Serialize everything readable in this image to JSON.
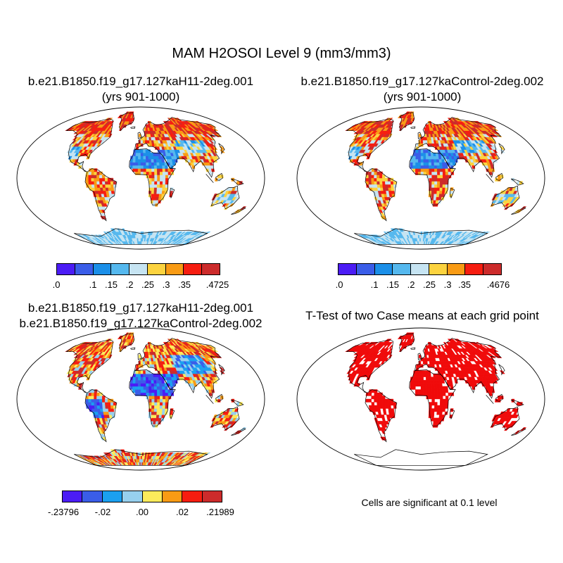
{
  "title": "MAM H2OSOI Level 9 (mm3/mm3)",
  "panels": [
    {
      "id": "case1",
      "title_lines": [
        "b.e21.B1850.f19_g17.127kaH11-2deg.001",
        "(yrs 901-1000)"
      ],
      "map_kind": "field",
      "colorbar": {
        "colors": [
          "#4b1cf5",
          "#3a5de8",
          "#1b8fe8",
          "#55b8ee",
          "#c6e4f2",
          "#fcd33f",
          "#f99b14",
          "#f61d10",
          "#cc2b2b"
        ],
        "labels": [
          ".0",
          ".1",
          ".15",
          ".2",
          ".25",
          ".3",
          ".35",
          ".4725"
        ]
      }
    },
    {
      "id": "case2",
      "title_lines": [
        "b.e21.B1850.f19_g17.127kaControl-2deg.002",
        "(yrs 901-1000)"
      ],
      "map_kind": "field",
      "colorbar": {
        "colors": [
          "#4b1cf5",
          "#3a5de8",
          "#1b8fe8",
          "#55b8ee",
          "#c6e4f2",
          "#fcd33f",
          "#f99b14",
          "#f61d10",
          "#cc2b2b"
        ],
        "labels": [
          ".0",
          ".1",
          ".15",
          ".2",
          ".25",
          ".3",
          ".35",
          ".4676"
        ]
      }
    },
    {
      "id": "diff",
      "title_lines": [
        "b.e21.B1850.f19_g17.127kaH11-2deg.001",
        "b.e21.B1850.f19_g17.127kaControl-2deg.002"
      ],
      "map_kind": "difference",
      "colorbar": {
        "colors": [
          "#4b1cf5",
          "#3a5de8",
          "#1ba0f0",
          "#97d0ee",
          "#fceb5b",
          "#f99b14",
          "#f61d10",
          "#cc2b2b"
        ],
        "labels": [
          "-.23796",
          "-.02",
          ".00",
          ".02",
          ".21989"
        ]
      }
    },
    {
      "id": "ttest",
      "title_lines": [
        "T-Test of two Case means at each grid point"
      ],
      "map_kind": "significance",
      "note": "Cells are significant at 0.1 level"
    }
  ]
}
